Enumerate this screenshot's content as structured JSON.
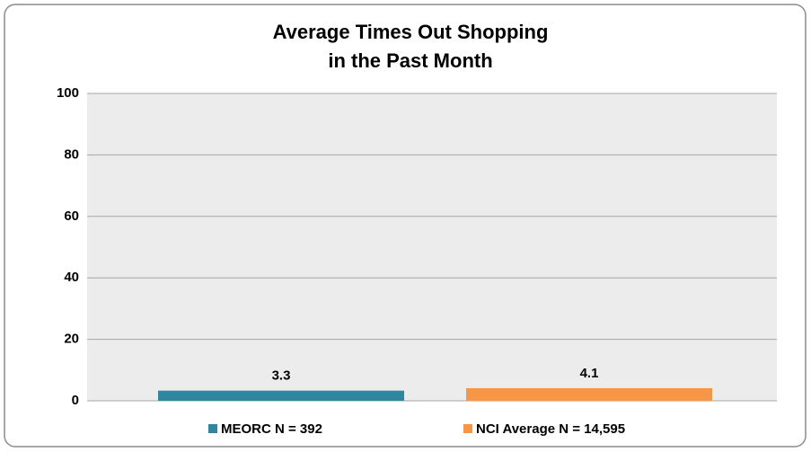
{
  "chart_data": {
    "type": "bar",
    "title": [
      "Average Times Out Shopping",
      "in the Past Month"
    ],
    "categories": [
      null
    ],
    "series": [
      {
        "name": "MEORC N = 392",
        "color": "#31859c",
        "values": [
          3.3
        ]
      },
      {
        "name": "NCI Average N = 14,595",
        "color": "#f79646",
        "values": [
          4.1
        ]
      }
    ],
    "ylim": [
      0,
      100
    ],
    "yticks": [
      0,
      20,
      40,
      60,
      80,
      100
    ],
    "grid": true,
    "legend": "bottom"
  }
}
